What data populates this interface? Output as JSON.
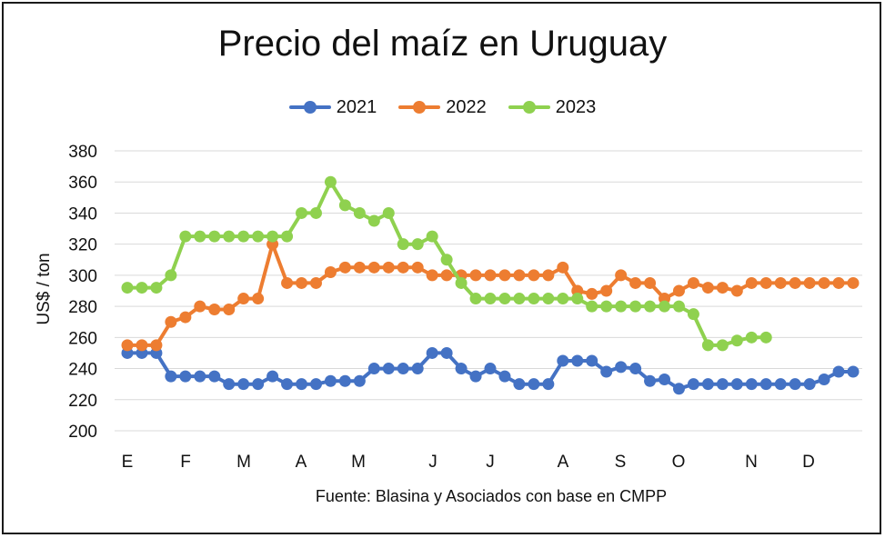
{
  "chart_data": {
    "type": "line",
    "title": "Precio del maíz en Uruguay",
    "ylabel": "US$ / ton",
    "source": "Fuente: Blasina y Asociados con base en CMPP",
    "ylim": [
      200,
      380
    ],
    "yticks": [
      200,
      220,
      240,
      260,
      280,
      300,
      320,
      340,
      360,
      380
    ],
    "month_labels": [
      "E",
      "F",
      "M",
      "A",
      "M",
      "J",
      "J",
      "A",
      "S",
      "O",
      "N",
      "D"
    ],
    "legend_position": "top-center",
    "grid": "horizontal",
    "series": [
      {
        "name": "2021",
        "color": "#4472C4",
        "values": [
          250,
          250,
          250,
          235,
          235,
          235,
          235,
          230,
          230,
          230,
          235,
          230,
          230,
          230,
          232,
          232,
          232,
          240,
          240,
          240,
          240,
          250,
          250,
          240,
          235,
          240,
          235,
          230,
          230,
          230,
          245,
          245,
          245,
          238,
          241,
          240,
          232,
          233,
          227,
          230,
          230,
          230,
          230,
          230,
          230,
          230,
          230,
          230,
          233,
          238,
          238
        ]
      },
      {
        "name": "2022",
        "color": "#ED7D31",
        "values": [
          255,
          255,
          255,
          270,
          273,
          280,
          278,
          278,
          285,
          285,
          320,
          295,
          295,
          295,
          302,
          305,
          305,
          305,
          305,
          305,
          305,
          300,
          300,
          300,
          300,
          300,
          300,
          300,
          300,
          300,
          305,
          290,
          288,
          290,
          300,
          295,
          295,
          285,
          290,
          295,
          292,
          292,
          290,
          295,
          295,
          295,
          295,
          295,
          295,
          295,
          295
        ]
      },
      {
        "name": "2023",
        "color": "#8FD14F",
        "values": [
          292,
          292,
          292,
          300,
          325,
          325,
          325,
          325,
          325,
          325,
          325,
          325,
          340,
          340,
          360,
          345,
          340,
          335,
          340,
          320,
          320,
          325,
          310,
          295,
          285,
          285,
          285,
          285,
          285,
          285,
          285,
          285,
          280,
          280,
          280,
          280,
          280,
          280,
          280,
          275,
          255,
          255,
          258,
          260,
          260
        ]
      }
    ]
  }
}
